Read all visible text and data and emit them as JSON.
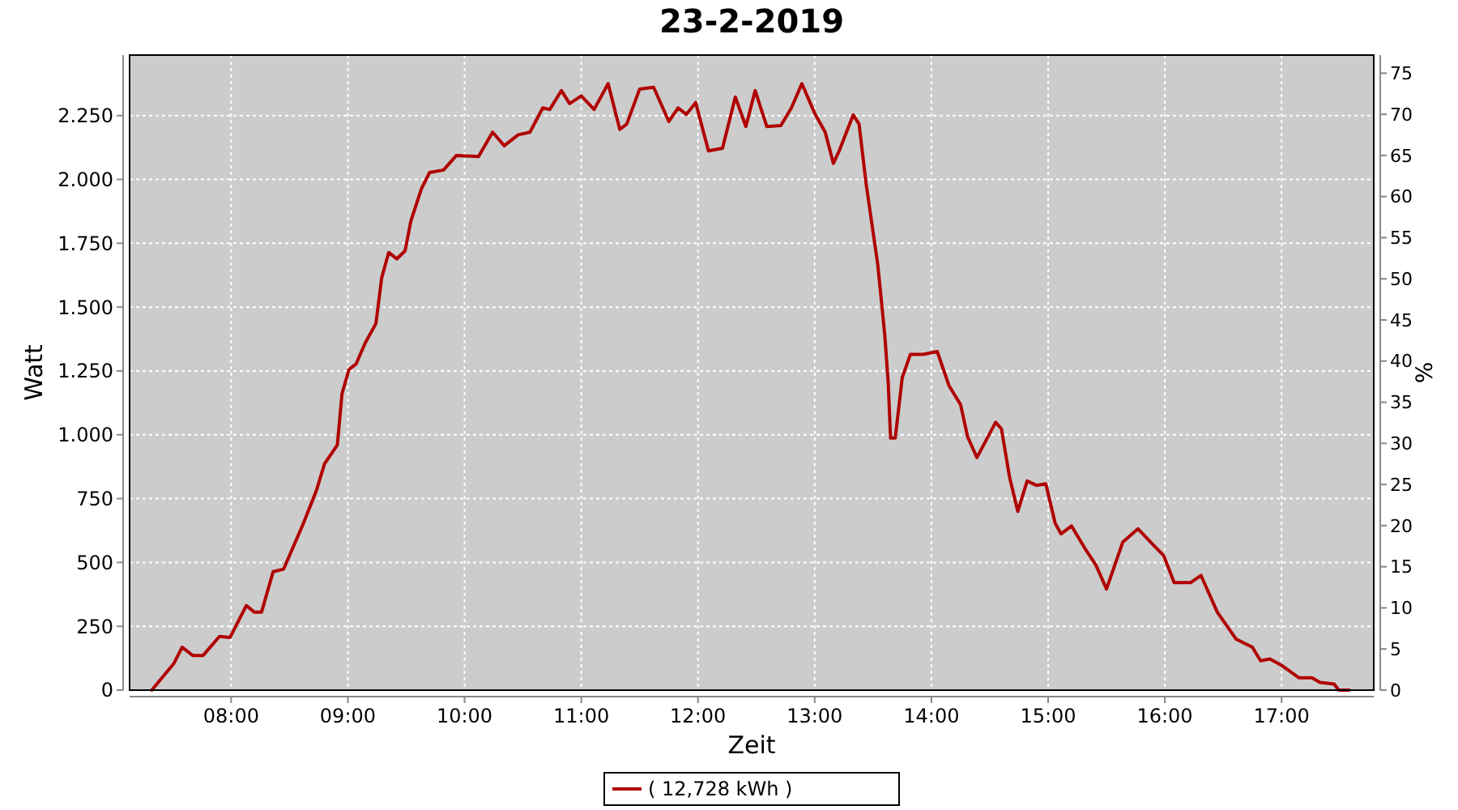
{
  "chart_data": {
    "type": "line",
    "title": "23-2-2019",
    "xlabel": "Zeit",
    "ylabel": "Watt",
    "y2label": "%",
    "x": [
      7.32,
      7.51,
      7.58,
      7.67,
      7.76,
      7.9,
      7.99,
      8.13,
      8.2,
      8.26,
      8.36,
      8.45,
      8.62,
      8.73,
      8.8,
      8.91,
      8.95,
      9.01,
      9.07,
      9.15,
      9.24,
      9.29,
      9.35,
      9.42,
      9.49,
      9.54,
      9.63,
      9.7,
      9.82,
      9.93,
      10.12,
      10.24,
      10.34,
      10.46,
      10.56,
      10.67,
      10.73,
      10.83,
      10.9,
      11.0,
      11.11,
      11.23,
      11.33,
      11.39,
      11.5,
      11.62,
      11.75,
      11.83,
      11.9,
      11.98,
      12.09,
      12.21,
      12.32,
      12.41,
      12.49,
      12.59,
      12.71,
      12.8,
      12.89,
      13.0,
      13.09,
      13.16,
      13.21,
      13.33,
      13.38,
      13.44,
      13.51,
      13.54,
      13.6,
      13.63,
      13.65,
      13.69,
      13.75,
      13.82,
      13.93,
      14.05,
      14.15,
      14.25,
      14.31,
      14.39,
      14.46,
      14.55,
      14.6,
      14.67,
      14.74,
      14.82,
      14.9,
      14.98,
      15.06,
      15.11,
      15.2,
      15.31,
      15.41,
      15.5,
      15.64,
      15.77,
      15.9,
      15.99,
      16.08,
      16.22,
      16.31,
      16.45,
      16.61,
      16.75,
      16.82,
      16.9,
      17.01,
      17.15,
      17.26,
      17.33,
      17.45,
      17.49,
      17.58
    ],
    "series": [
      {
        "name": "( 12,728 kWh )",
        "color": "#b00000",
        "values": [
          0,
          105,
          168,
          136,
          136,
          210,
          206,
          331,
          305,
          305,
          464,
          474,
          654,
          781,
          886,
          960,
          1161,
          1256,
          1277,
          1361,
          1435,
          1615,
          1714,
          1689,
          1720,
          1837,
          1963,
          2027,
          2037,
          2094,
          2090,
          2185,
          2132,
          2175,
          2185,
          2280,
          2274,
          2348,
          2297,
          2327,
          2274,
          2375,
          2196,
          2217,
          2354,
          2361,
          2227,
          2280,
          2255,
          2301,
          2112,
          2122,
          2323,
          2207,
          2348,
          2207,
          2211,
          2280,
          2375,
          2259,
          2185,
          2063,
          2112,
          2253,
          2217,
          1985,
          1763,
          1668,
          1393,
          1203,
          987,
          987,
          1224,
          1315,
          1315,
          1326,
          1193,
          1118,
          992,
          911,
          971,
          1049,
          1023,
          833,
          700,
          819,
          802,
          808,
          654,
          612,
          643,
          559,
          489,
          396,
          580,
          632,
          569,
          527,
          421,
          421,
          449,
          305,
          200,
          168,
          115,
          122,
          94,
          48,
          48,
          30,
          24,
          0,
          0
        ]
      }
    ],
    "xlim": [
      7.13,
      17.79
    ],
    "xticks": [
      {
        "value": 8,
        "label": "08:00"
      },
      {
        "value": 9,
        "label": "09:00"
      },
      {
        "value": 10,
        "label": "10:00"
      },
      {
        "value": 11,
        "label": "11:00"
      },
      {
        "value": 12,
        "label": "12:00"
      },
      {
        "value": 13,
        "label": "13:00"
      },
      {
        "value": 14,
        "label": "14:00"
      },
      {
        "value": 15,
        "label": "15:00"
      },
      {
        "value": 16,
        "label": "16:00"
      },
      {
        "value": 17,
        "label": "17:00"
      }
    ],
    "ylim": [
      0,
      2487
    ],
    "yticks": [
      0,
      250,
      500,
      750,
      {
        "value": 1000,
        "label": "1.000"
      },
      {
        "value": 1250,
        "label": "1.250"
      },
      {
        "value": 1500,
        "label": "1.500"
      },
      {
        "value": 1750,
        "label": "1.750"
      },
      {
        "value": 2000,
        "label": "2.000"
      },
      {
        "value": 2250,
        "label": "2.250"
      }
    ],
    "y2lim": [
      0,
      77.2
    ],
    "y2ticks": [
      0,
      5,
      10,
      15,
      20,
      25,
      30,
      35,
      40,
      45,
      50,
      55,
      60,
      65,
      70,
      75
    ],
    "grid": true,
    "legend": "bottom",
    "line_style": "solid"
  }
}
